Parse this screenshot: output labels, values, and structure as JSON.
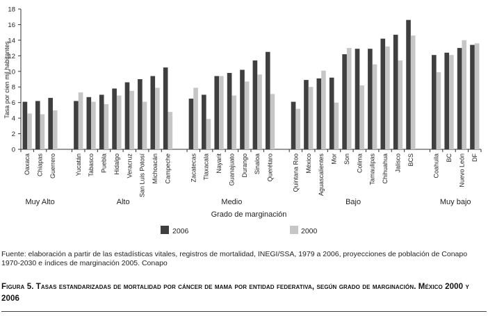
{
  "chart_data": {
    "type": "bar",
    "ylabel": "Tasa por cien mil habitantes",
    "xlabel": "Grado de marginación",
    "ylim": [
      0,
      18
    ],
    "yticks": [
      0,
      2,
      4,
      6,
      8,
      10,
      12,
      14,
      16,
      18
    ],
    "groups": [
      {
        "label": "Muy Alto",
        "categories": [
          "Oaxaca",
          "Chiapas",
          "Guerrero"
        ]
      },
      {
        "label": "Alto",
        "categories": [
          "Yucatán",
          "Tabasco",
          "Puebla",
          "Hidalgo",
          "Veracruz",
          "San Luis Potosí",
          "Michoacán",
          "Campeche"
        ]
      },
      {
        "label": "Medio",
        "categories": [
          "Zacatecas",
          "Tlaxacala",
          "Nayarit",
          "Guanajuato",
          "Durango",
          "Sinaloa",
          "Querétaro"
        ]
      },
      {
        "label": "Bajo",
        "categories": [
          "Quintana Roo",
          "México",
          "Aguascalientes",
          "Mor",
          "Son",
          "Colima",
          "Tamaulipas",
          "Chihuahua",
          "Jalisco",
          "BCS"
        ]
      },
      {
        "label": "Muy bajo",
        "categories": [
          "Coahuila",
          "BC",
          "Nuevo León",
          "DF"
        ]
      }
    ],
    "series": [
      {
        "name": "2006",
        "color": "#3f3f3f",
        "values": [
          6.1,
          6.2,
          6.6,
          6.2,
          6.7,
          7.0,
          7.8,
          8.6,
          9.0,
          9.4,
          10.5,
          6.5,
          7.0,
          9.4,
          9.8,
          10.2,
          11.4,
          12.5,
          6.1,
          8.9,
          9.1,
          9.2,
          12.2,
          12.9,
          12.9,
          14.2,
          14.7,
          16.6,
          12.1,
          12.4,
          13.0,
          13.4
        ]
      },
      {
        "name": "2000",
        "color": "#c6c6c6",
        "values": [
          4.6,
          4.5,
          5.0,
          7.3,
          6.1,
          5.8,
          6.9,
          7.5,
          6.1,
          7.9,
          4.8,
          7.9,
          3.9,
          9.4,
          6.9,
          8.7,
          9.6,
          7.1,
          5.2,
          8.0,
          10.1,
          6.0,
          13.0,
          8.2,
          10.9,
          13.2,
          11.4,
          14.6,
          9.9,
          12.1,
          14.0,
          13.6
        ]
      }
    ]
  },
  "legend": {
    "label_2006": "2006",
    "label_2000": "2000"
  },
  "footer": {
    "source": "Fuente: elaboración a partir de las estadísticas vitales, registros de mortalidad, INEGI/SSA, 1979 a 2006, proyecciones de población de Conapo 1970-2030 e índices de marginación 2005. Conapo",
    "caption": "Figura 5. Tasas estandarizadas de mortalidad por cáncer de mama por entidad federativa, según grado de marginación. México 2000 y 2006"
  }
}
